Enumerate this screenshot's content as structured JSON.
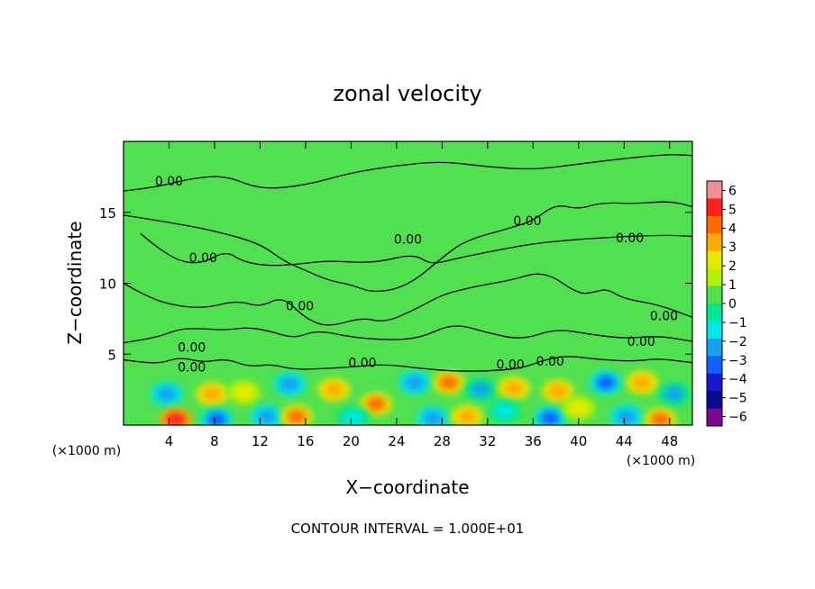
{
  "chart_data": {
    "type": "heatmap",
    "title": "zonal velocity",
    "xlabel": "X−coordinate",
    "ylabel": "Z−coordinate",
    "x_unit_left": "(×1000 m)",
    "x_unit_right": "(×1000 m)",
    "footer": "CONTOUR INTERVAL = 1.000E+01",
    "xlim": [
      0,
      50
    ],
    "ylim": [
      0,
      20
    ],
    "x_ticks": [
      "4",
      "8",
      "12",
      "16",
      "20",
      "24",
      "28",
      "32",
      "36",
      "40",
      "44",
      "48"
    ],
    "y_ticks": [
      "5",
      "10",
      "15"
    ],
    "colorbar": {
      "ticks": [
        "6",
        "5",
        "4",
        "3",
        "2",
        "1",
        "0",
        "−1",
        "−2",
        "−3",
        "−4",
        "−5",
        "−6"
      ],
      "colors": [
        "#f09090",
        "#ff2020",
        "#ff6a00",
        "#ffaa00",
        "#e8e800",
        "#b4f000",
        "#50e050",
        "#00e890",
        "#00e8e8",
        "#18a0f0",
        "#1060ff",
        "#1818d0",
        "#0a0a90",
        "#7a0a90"
      ]
    },
    "contour_label": "0.00",
    "contours": [
      {
        "points": [
          [
            0,
            16.5
          ],
          [
            3,
            16.8
          ],
          [
            6,
            17.4
          ],
          [
            9,
            17.6
          ],
          [
            12,
            16.6
          ],
          [
            16,
            16.9
          ],
          [
            20,
            17.8
          ],
          [
            24,
            18.3
          ],
          [
            28,
            18.6
          ],
          [
            32,
            18.2
          ],
          [
            36,
            18.0
          ],
          [
            40,
            18.4
          ],
          [
            44,
            18.8
          ],
          [
            48,
            19.1
          ],
          [
            50,
            19.0
          ]
        ],
        "labels": [
          [
            4,
            17.2
          ]
        ]
      },
      {
        "points": [
          [
            0,
            14.8
          ],
          [
            4,
            14.3
          ],
          [
            8,
            13.7
          ],
          [
            12,
            12.8
          ],
          [
            14,
            11.6
          ],
          [
            16,
            10.9
          ],
          [
            18,
            10.2
          ],
          [
            20,
            9.9
          ],
          [
            22,
            9.3
          ],
          [
            25,
            9.8
          ],
          [
            28,
            11.8
          ],
          [
            30,
            13.0
          ],
          [
            34,
            13.9
          ],
          [
            36,
            14.4
          ],
          [
            38,
            15.6
          ],
          [
            40,
            15.2
          ],
          [
            42,
            15.7
          ],
          [
            45,
            15.6
          ],
          [
            48,
            15.8
          ],
          [
            50,
            15.4
          ]
        ],
        "labels": [
          [
            25,
            13.1
          ],
          [
            35.5,
            14.4
          ]
        ]
      },
      {
        "points": [
          [
            1.5,
            13.5
          ],
          [
            3,
            12.5
          ],
          [
            5,
            11.5
          ],
          [
            7,
            11.4
          ],
          [
            9,
            12.3
          ],
          [
            10.5,
            11.5
          ],
          [
            13,
            11.2
          ],
          [
            16,
            11.4
          ],
          [
            18,
            11.6
          ],
          [
            22,
            11.4
          ],
          [
            25.5,
            12.1
          ],
          [
            27,
            11.3
          ],
          [
            29,
            11.7
          ],
          [
            32,
            12.2
          ],
          [
            36,
            12.8
          ],
          [
            40,
            13.1
          ],
          [
            44,
            13.3
          ],
          [
            48,
            13.4
          ],
          [
            50,
            13.3
          ]
        ],
        "labels": [
          [
            7,
            11.8
          ],
          [
            44.5,
            13.2
          ]
        ]
      },
      {
        "points": [
          [
            0,
            10
          ],
          [
            2,
            9.1
          ],
          [
            4,
            8.5
          ],
          [
            7,
            8.2
          ],
          [
            10,
            8.8
          ],
          [
            12,
            8.3
          ],
          [
            14,
            9.1
          ],
          [
            16,
            7.5
          ],
          [
            18,
            6.9
          ],
          [
            21,
            7.6
          ],
          [
            23,
            7.2
          ],
          [
            26,
            8.3
          ],
          [
            28,
            9.2
          ],
          [
            31,
            9.8
          ],
          [
            34,
            10.2
          ],
          [
            37,
            10.9
          ],
          [
            40,
            9.2
          ],
          [
            41.5,
            9.4
          ],
          [
            42.5,
            9.6
          ],
          [
            44,
            8.9
          ],
          [
            47,
            8.5
          ],
          [
            50,
            7.6
          ]
        ],
        "labels": [
          [
            15.5,
            8.4
          ],
          [
            47.5,
            7.7
          ]
        ]
      },
      {
        "points": [
          [
            0,
            5.8
          ],
          [
            3,
            6.2
          ],
          [
            5,
            6.8
          ],
          [
            7,
            6.8
          ],
          [
            9,
            6.7
          ],
          [
            11,
            6.9
          ],
          [
            13,
            6.6
          ],
          [
            15,
            6.1
          ],
          [
            17,
            6.7
          ],
          [
            20,
            6.2
          ],
          [
            23,
            6.0
          ],
          [
            26,
            6.1
          ],
          [
            29,
            7.2
          ],
          [
            32,
            6.5
          ],
          [
            35,
            6.0
          ],
          [
            38,
            6.8
          ],
          [
            41,
            6.4
          ],
          [
            44,
            6.1
          ],
          [
            47,
            6.3
          ],
          [
            50,
            5.9
          ]
        ],
        "labels": [
          [
            6,
            5.5
          ],
          [
            45.5,
            5.9
          ]
        ]
      },
      {
        "points": [
          [
            0,
            4.6
          ],
          [
            3,
            4.3
          ],
          [
            5,
            4.8
          ],
          [
            7,
            4.4
          ],
          [
            9,
            4.7
          ],
          [
            11,
            4.1
          ],
          [
            13,
            4.3
          ],
          [
            15,
            3.9
          ],
          [
            18,
            4.0
          ],
          [
            20,
            4.1
          ],
          [
            23,
            4.3
          ],
          [
            26,
            4.0
          ],
          [
            29,
            3.8
          ],
          [
            32,
            3.8
          ],
          [
            35,
            4.0
          ],
          [
            37,
            4.6
          ],
          [
            39,
            4.9
          ],
          [
            42,
            4.6
          ],
          [
            45,
            4.5
          ],
          [
            47,
            4.7
          ],
          [
            50,
            4.4
          ]
        ],
        "labels": [
          [
            6,
            4.1
          ],
          [
            21,
            4.4
          ],
          [
            34,
            4.3
          ],
          [
            37.5,
            4.5
          ]
        ]
      }
    ],
    "blobs": [
      {
        "x": 3.8,
        "z": 2.2,
        "v": -3.2
      },
      {
        "x": 7.8,
        "z": 2.2,
        "v": 3.0
      },
      {
        "x": 10.6,
        "z": 2.3,
        "v": 2.0
      },
      {
        "x": 14.6,
        "z": 2.9,
        "v": -3.0
      },
      {
        "x": 18.5,
        "z": 2.5,
        "v": 3.2
      },
      {
        "x": 22.2,
        "z": 1.5,
        "v": 3.4
      },
      {
        "x": 25.6,
        "z": 3.0,
        "v": -2.8
      },
      {
        "x": 28.6,
        "z": 3.0,
        "v": 3.6
      },
      {
        "x": 31.4,
        "z": 2.5,
        "v": -2.4
      },
      {
        "x": 34.3,
        "z": 2.6,
        "v": 2.6
      },
      {
        "x": 38.2,
        "z": 2.4,
        "v": 3.0
      },
      {
        "x": 42.4,
        "z": 3.0,
        "v": -3.6
      },
      {
        "x": 45.6,
        "z": 3.0,
        "v": 3.2
      },
      {
        "x": 48.4,
        "z": 2.2,
        "v": -2.4
      },
      {
        "x": 4.6,
        "z": 0.4,
        "v": 4.5
      },
      {
        "x": 8.2,
        "z": 0.4,
        "v": -4.0
      },
      {
        "x": 12.6,
        "z": 0.6,
        "v": -3.2
      },
      {
        "x": 15.2,
        "z": 0.6,
        "v": 3.8
      },
      {
        "x": 20.2,
        "z": 0.5,
        "v": -2.0
      },
      {
        "x": 27.2,
        "z": 0.5,
        "v": -2.6
      },
      {
        "x": 30.2,
        "z": 0.6,
        "v": 2.8
      },
      {
        "x": 37.5,
        "z": 0.5,
        "v": -3.4
      },
      {
        "x": 44.2,
        "z": 0.6,
        "v": -2.8
      },
      {
        "x": 47.2,
        "z": 0.4,
        "v": 4.0
      },
      {
        "x": 40.0,
        "z": 1.2,
        "v": 2.2
      },
      {
        "x": 33.5,
        "z": 1.0,
        "v": -1.6
      }
    ]
  }
}
